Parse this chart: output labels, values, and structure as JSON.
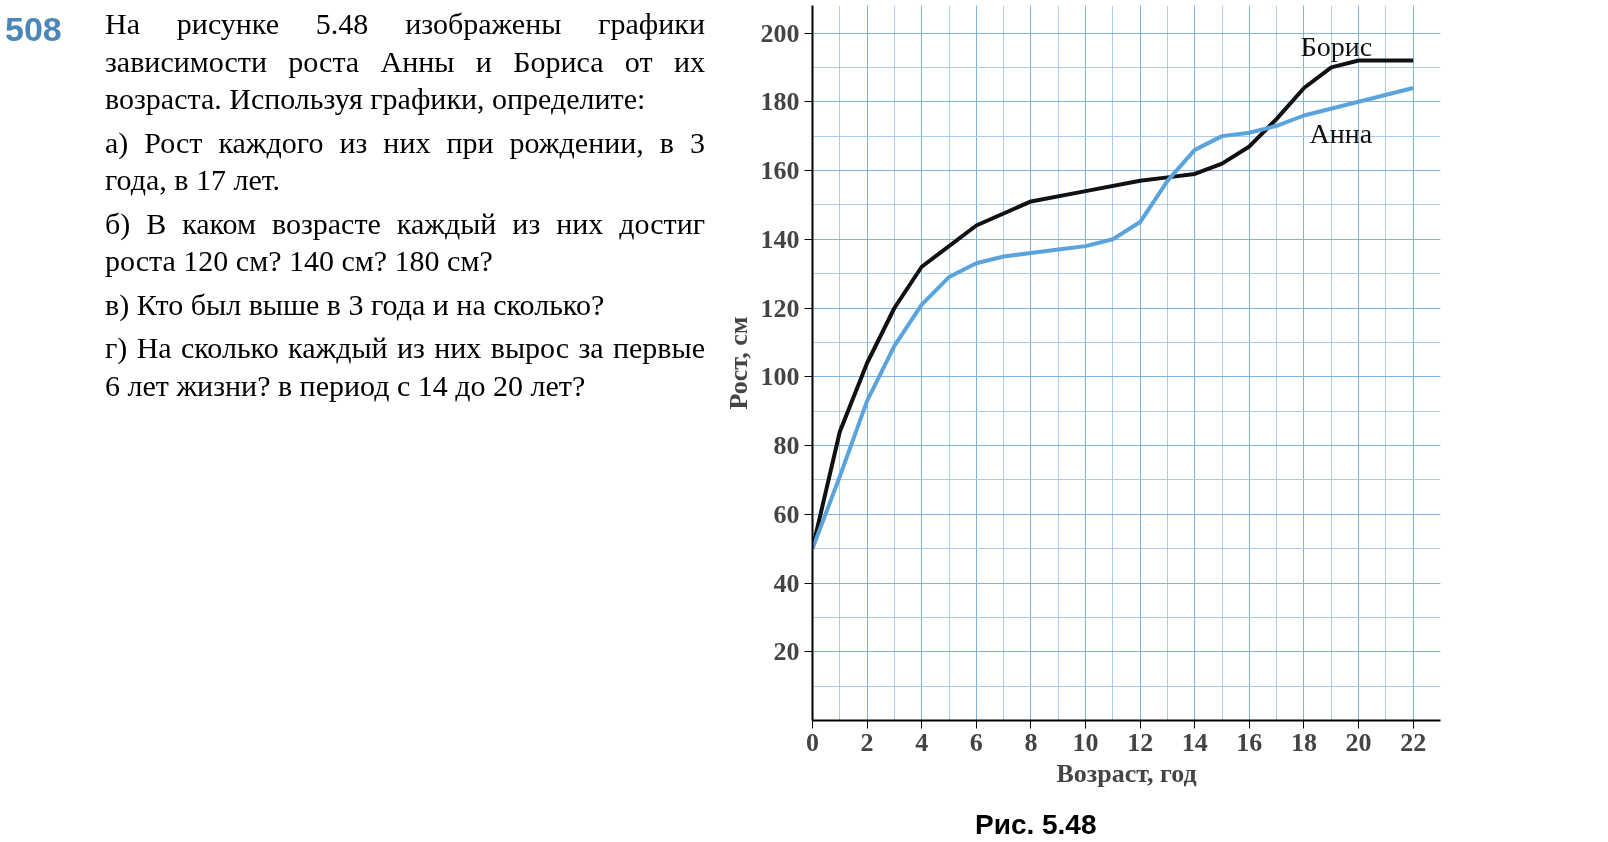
{
  "chart_data": {
    "type": "line",
    "xlabel": "Возраст, год",
    "ylabel": "Рост, см",
    "annotations": [
      "508",
      "На рисунке 5.48 изображены графики зависимости роста Анны и Бориса от их возраста. Используя графики, определите:",
      "а) Рост каждого из них при рождении, в 3 года, в 17 лет.",
      "б) В каком возрасте каждый из них достиг роста 120 см? 140 см? 180 см?",
      "в) Кто был выше в 3 года и на сколько?",
      "г) На сколько каждый из них вырос за первые 6 лет жизни? в период с 14 до 20 лет?",
      "Рис. 5.48"
    ],
    "series": [
      {
        "name": "Борис",
        "color": "#111111",
        "x": [
          0,
          1,
          2,
          3,
          4,
          6,
          8,
          10,
          12,
          13,
          14,
          15,
          16,
          17,
          18,
          19,
          20,
          22
        ],
        "values": [
          50,
          84,
          104,
          120,
          132,
          144,
          151,
          154,
          157,
          158,
          159,
          162,
          167,
          175,
          184,
          190,
          192,
          192
        ]
      },
      {
        "name": "Анна",
        "color": "#5ba3dc",
        "x": [
          0,
          1,
          2,
          3,
          4,
          5,
          6,
          7,
          8,
          9,
          10,
          11,
          12,
          13,
          14,
          15,
          16,
          17,
          18,
          20,
          22
        ],
        "values": [
          50,
          71,
          93,
          109,
          121,
          129,
          133,
          135,
          136,
          137,
          138,
          140,
          145,
          157,
          166,
          170,
          171,
          173,
          176,
          180,
          184
        ]
      }
    ],
    "xlim": [
      0,
      23
    ],
    "ylim": [
      0,
      208
    ],
    "xticks": [
      0,
      2,
      4,
      6,
      8,
      10,
      12,
      14,
      16,
      18,
      20,
      22
    ],
    "yticks": [
      20,
      40,
      60,
      80,
      100,
      120,
      140,
      160,
      180,
      200
    ],
    "grid": true,
    "marker": "none",
    "line_style": "solid"
  }
}
